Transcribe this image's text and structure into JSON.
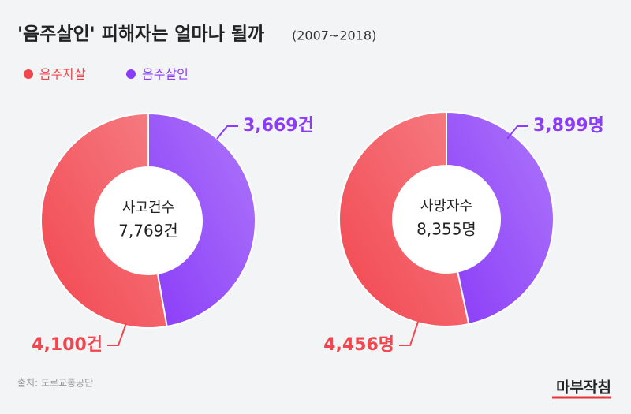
{
  "title": "'음주살인' 피해자는 얼마나 될까",
  "subtitle": "(2007~2018)",
  "source": "출처: 도로교통공단",
  "logo": "마부작침",
  "chart_data": [
    {
      "type": "donut",
      "center_label": "사고건수",
      "center_value": "7,769건",
      "categories": [
        "음주살인",
        "음주자살"
      ],
      "values": [
        3669,
        4100
      ],
      "value_labels": [
        "3,669건",
        "4,100건"
      ],
      "colors": [
        "#8a3cf8",
        "#f2464f"
      ]
    },
    {
      "type": "donut",
      "center_label": "사망자수",
      "center_value": "8,355명",
      "categories": [
        "음주살인",
        "음주자살"
      ],
      "values": [
        3899,
        4456
      ],
      "value_labels": [
        "3,899명",
        "4,456명"
      ],
      "colors": [
        "#8a3cf8",
        "#f2464f"
      ]
    }
  ]
}
